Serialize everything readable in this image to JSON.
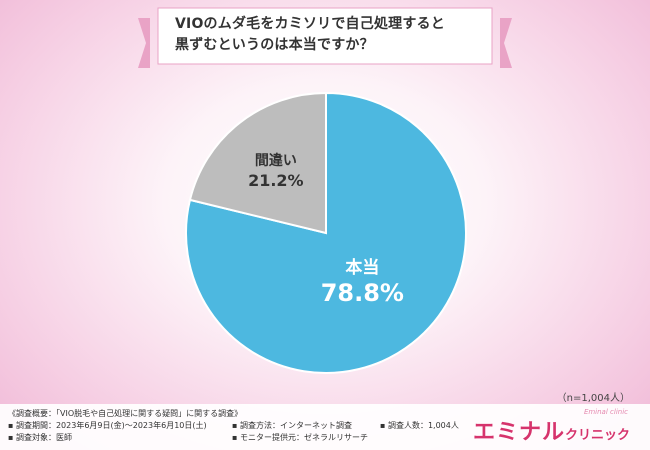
{
  "title_line1": "VIOのムダ毛をカミソリで自己処理すると",
  "title_line2": "黒ずむというのは本当ですか？",
  "chart_data": {
    "type": "pie",
    "categories": [
      "本当",
      "間違い"
    ],
    "values": [
      78.8,
      21.2
    ],
    "value_labels": [
      "78.8%",
      "21.2%"
    ],
    "colors": [
      "#4db8e0",
      "#bdbdbd"
    ],
    "start": "12 o'clock",
    "direction": "clockwise"
  },
  "sample_size": "（n=1,004人）",
  "footer": {
    "survey_title": "《調査概要：「VIO脱毛や自己処理に関する疑問」に関する調査》",
    "period": "▪ 調査期間：2023年6月9日(金)〜2023年6月10日(土)",
    "method": "▪ 調査方法：インターネット調査",
    "respondents": "▪ 調査人数：1,004人",
    "target": "▪ 調査対象：医師",
    "provider": "▪ モニター提供元：ゼネラルリサーチ"
  },
  "logo": {
    "main": "エミナル",
    "sub": "クリニック",
    "script": "Eminal clinic"
  }
}
